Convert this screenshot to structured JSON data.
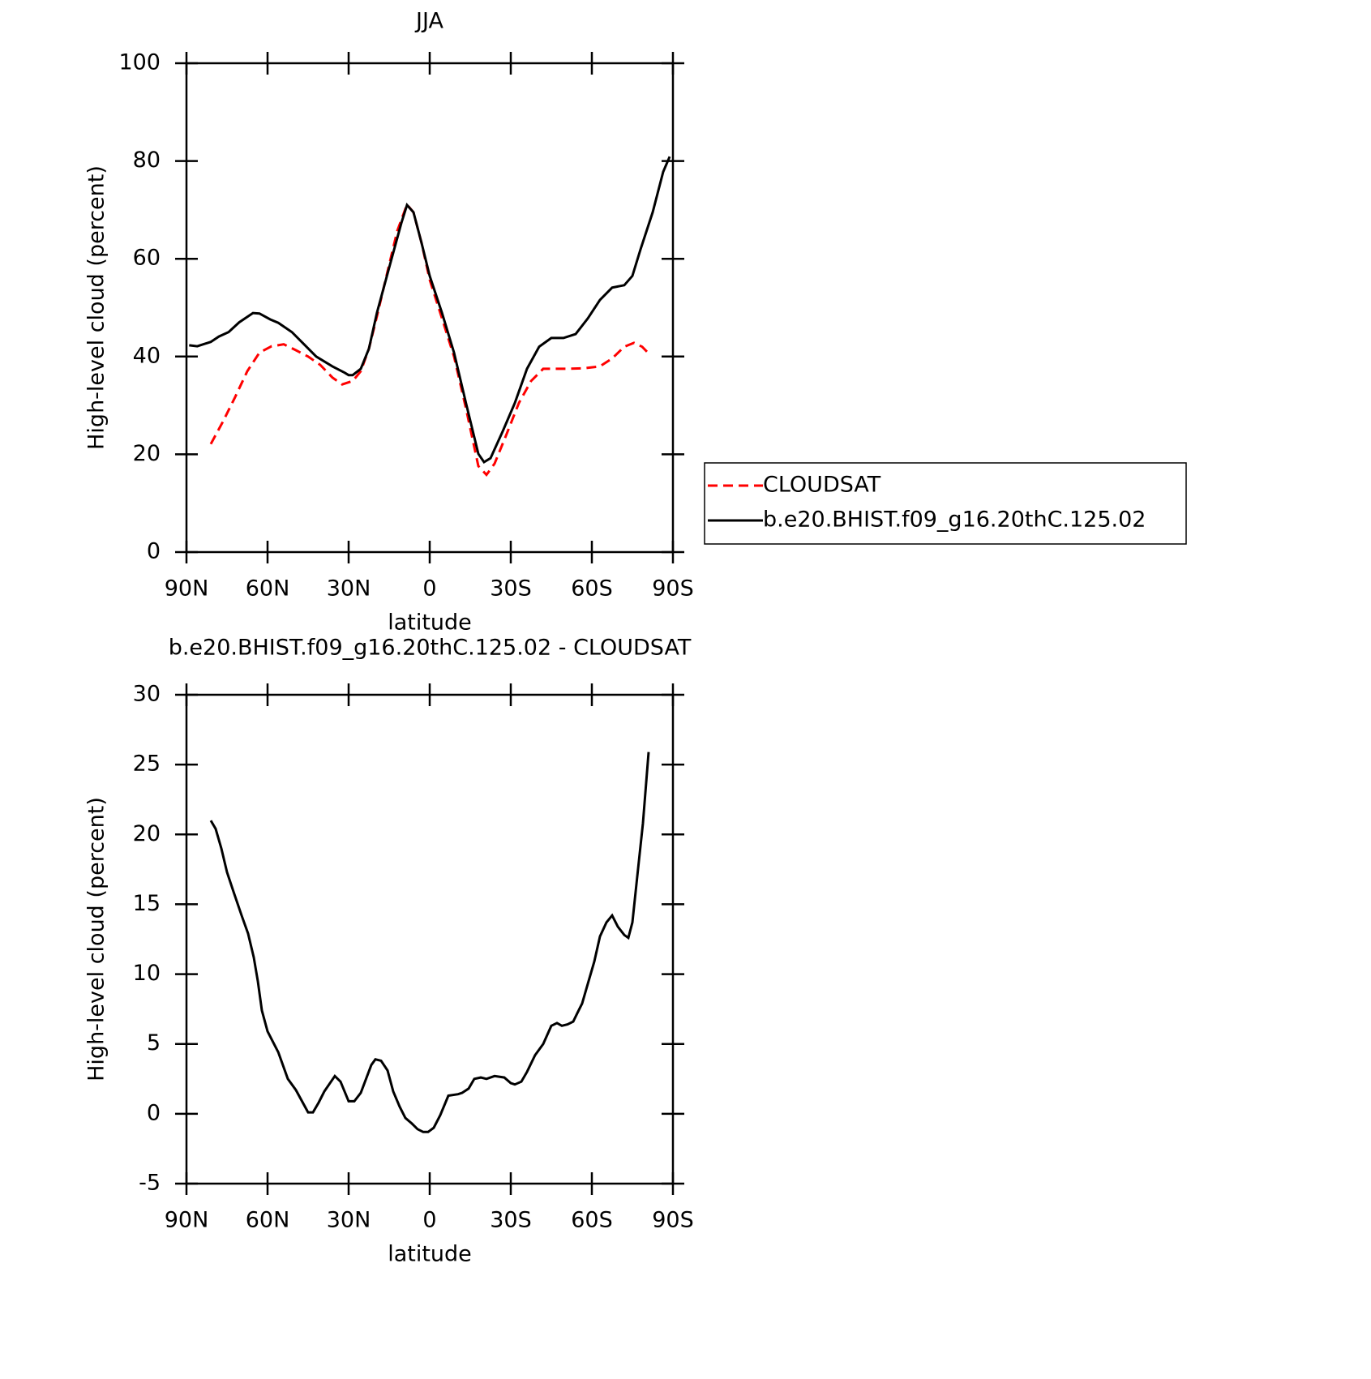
{
  "chart_data": [
    {
      "type": "line",
      "title": "JJA",
      "x_label": "latitude",
      "y_label": "High-level cloud (percent)",
      "xlim": [
        90,
        -90
      ],
      "xticks": [
        {
          "value": 90,
          "label": "90N"
        },
        {
          "value": 60,
          "label": "60N"
        },
        {
          "value": 30,
          "label": "30N"
        },
        0,
        {
          "value": -30,
          "label": "30S"
        },
        {
          "value": -60,
          "label": "60S"
        },
        {
          "value": -90,
          "label": "90S"
        }
      ],
      "ylim": [
        0,
        100
      ],
      "yticks": [
        0,
        20,
        40,
        60,
        80,
        100
      ],
      "legend": "right",
      "series": [
        {
          "name": "CLOUDSAT",
          "color": "#ff0000",
          "dash": true,
          "x": [
            81,
            76.5,
            72,
            67.5,
            63,
            58.5,
            54,
            49.5,
            45,
            40.5,
            36,
            32.4,
            28.5,
            25.5,
            22.5,
            19.5,
            15.6,
            12,
            8.4,
            6,
            3,
            0,
            -4.5,
            -9,
            -13.5,
            -18,
            -21,
            -24,
            -28.5,
            -33,
            -37.5,
            -42,
            -46.5,
            -51,
            -57,
            -63,
            -67.5,
            -72,
            -75.6,
            -78.6,
            -81.6
          ],
          "values": [
            22.1,
            26.7,
            31.7,
            37,
            40.8,
            42.1,
            42.5,
            41.3,
            40,
            38.3,
            35.7,
            34.3,
            35,
            37,
            41.6,
            48.3,
            57.4,
            65.7,
            71.1,
            69.5,
            63.2,
            55.7,
            47.9,
            40,
            29.2,
            17.6,
            15.8,
            18.1,
            24.2,
            30.5,
            35,
            37.5,
            37.5,
            37.5,
            37.6,
            38,
            39.6,
            42,
            42.8,
            42,
            40.3
          ]
        },
        {
          "name": "b.e20.BHIST.f09_g16.20thC.125.02",
          "color": "#000000",
          "dash": false,
          "x": [
            89,
            86,
            81,
            78,
            74.4,
            70.5,
            65.4,
            63,
            59,
            56,
            51,
            46.5,
            42,
            36,
            31.5,
            30,
            28.5,
            25.5,
            22.5,
            19.5,
            15,
            10.5,
            8.4,
            6,
            3,
            0,
            -4.5,
            -9,
            -13.5,
            -18,
            -20.1,
            -22.5,
            -27,
            -31.5,
            -36,
            -40.5,
            -45,
            -49.5,
            -54,
            -58.5,
            -63,
            -67.5,
            -72,
            -75,
            -78,
            -82.5,
            -86.4,
            -88.8
          ],
          "values": [
            42.3,
            42.1,
            43,
            44.1,
            45,
            47,
            48.9,
            48.8,
            47.6,
            46.9,
            45,
            42.5,
            40,
            38,
            36.7,
            36.2,
            36.2,
            37.5,
            41.6,
            49,
            58.2,
            67.3,
            71,
            69.5,
            63.2,
            56.5,
            49,
            40.8,
            30.3,
            20.1,
            18.4,
            19.2,
            24.7,
            30.5,
            37.5,
            42,
            43.8,
            43.8,
            44.6,
            47.8,
            51.6,
            54.1,
            54.6,
            56.5,
            61.9,
            69.5,
            77.8,
            80.9
          ]
        }
      ]
    },
    {
      "type": "line",
      "title": "b.e20.BHIST.f09_g16.20thC.125.02 - CLOUDSAT",
      "x_label": "latitude",
      "y_label": "High-level cloud (percent)",
      "xlim": [
        90,
        -90
      ],
      "xticks": [
        {
          "value": 90,
          "label": "90N"
        },
        {
          "value": 60,
          "label": "60N"
        },
        {
          "value": 30,
          "label": "30N"
        },
        0,
        {
          "value": -30,
          "label": "30S"
        },
        {
          "value": -60,
          "label": "60S"
        },
        {
          "value": -90,
          "label": "90S"
        }
      ],
      "ylim": [
        -5,
        30
      ],
      "yticks": [
        -5,
        0,
        5,
        10,
        15,
        20,
        25,
        30
      ],
      "series": [
        {
          "color": "#000000",
          "dash": false,
          "x": [
            81,
            79.2,
            77.1,
            75,
            72.6,
            69.6,
            67.2,
            65.1,
            63.6,
            62.1,
            60,
            56,
            52.5,
            49.5,
            45,
            43.2,
            41.1,
            39,
            35.1,
            33,
            30,
            27.9,
            25.5,
            21.6,
            20.1,
            18,
            15.6,
            13.5,
            11.1,
            9,
            6.6,
            4.5,
            2.4,
            0.6,
            -1.5,
            -3.9,
            -6.9,
            -10.5,
            -12,
            -14.4,
            -16.5,
            -18.9,
            -21,
            -24,
            -27.6,
            -30,
            -31.5,
            -33.9,
            -36,
            -39,
            -42,
            -45,
            -47.1,
            -48.9,
            -51,
            -53.1,
            -54.6,
            -56.4,
            -58.5,
            -60.9,
            -63,
            -65.4,
            -67.5,
            -69.6,
            -72,
            -73.5,
            -75,
            -76.8,
            -78.9,
            -81
          ],
          "values": [
            21,
            20.4,
            19,
            17.3,
            15.9,
            14.2,
            12.9,
            11.2,
            9.5,
            7.4,
            5.9,
            4.4,
            2.5,
            1.7,
            0.1,
            0.1,
            0.8,
            1.6,
            2.7,
            2.3,
            0.9,
            0.9,
            1.5,
            3.5,
            3.9,
            3.8,
            3.1,
            1.6,
            0.5,
            -0.3,
            -0.7,
            -1.1,
            -1.3,
            -1.3,
            -1,
            -0.1,
            1.3,
            1.4,
            1.5,
            1.8,
            2.5,
            2.6,
            2.5,
            2.7,
            2.6,
            2.2,
            2.1,
            2.3,
            3,
            4.2,
            5,
            6.3,
            6.5,
            6.3,
            6.4,
            6.6,
            7.2,
            7.9,
            9.3,
            10.9,
            12.7,
            13.7,
            14.2,
            13.4,
            12.8,
            12.6,
            13.7,
            17,
            20.8,
            25.9
          ]
        }
      ]
    }
  ]
}
